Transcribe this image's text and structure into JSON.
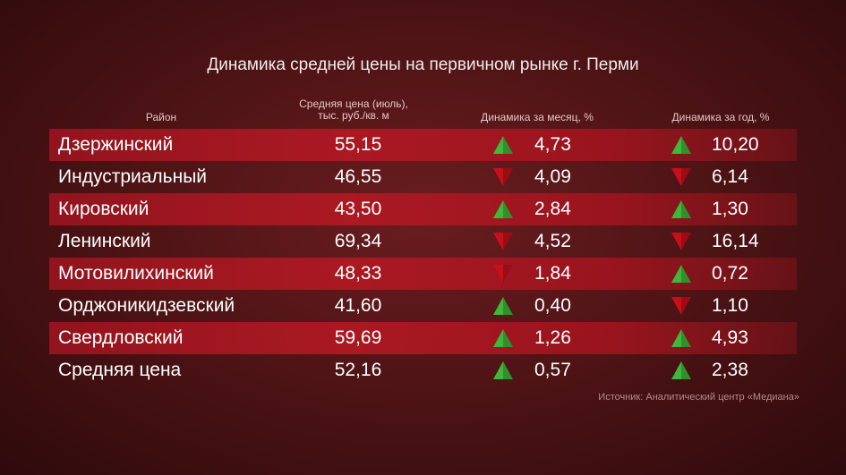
{
  "title": "Динамика средней цены на первичном рынке г. Перми",
  "headers": {
    "district": "Район",
    "price_line1": "Средняя цена (июль),",
    "price_line2": "тыс. руб./кв. м",
    "month": "Динамика за месяц, %",
    "year": "Динамика за год, %"
  },
  "rows": [
    {
      "name": "Дзержинский",
      "price": "55,15",
      "month_dir": "up",
      "month": "4,73",
      "year_dir": "up",
      "year": "10,20"
    },
    {
      "name": "Индустриальный",
      "price": "46,55",
      "month_dir": "down",
      "month": "4,09",
      "year_dir": "down",
      "year": "6,14"
    },
    {
      "name": "Кировский",
      "price": "43,50",
      "month_dir": "up",
      "month": "2,84",
      "year_dir": "up",
      "year": "1,30"
    },
    {
      "name": "Ленинский",
      "price": "69,34",
      "month_dir": "down",
      "month": "4,52",
      "year_dir": "down",
      "year": "16,14"
    },
    {
      "name": "Мотовилихинский",
      "price": "48,33",
      "month_dir": "down",
      "month": "1,84",
      "year_dir": "up",
      "year": "0,72"
    },
    {
      "name": "Орджоникидзевский",
      "price": "41,60",
      "month_dir": "up",
      "month": "0,40",
      "year_dir": "down",
      "year": "1,10"
    },
    {
      "name": "Свердловский",
      "price": "59,69",
      "month_dir": "up",
      "month": "1,26",
      "year_dir": "up",
      "year": "4,93"
    },
    {
      "name": "Средняя цена",
      "price": "52,16",
      "month_dir": "up",
      "month": "0,57",
      "year_dir": "up",
      "year": "2,38"
    }
  ],
  "icons": {
    "up": "triangle-up-icon",
    "down": "triangle-down-icon"
  },
  "colors": {
    "up": "#3fb83a",
    "down": "#c8101c"
  },
  "source": "Источник: Аналитический центр «Медиана»"
}
